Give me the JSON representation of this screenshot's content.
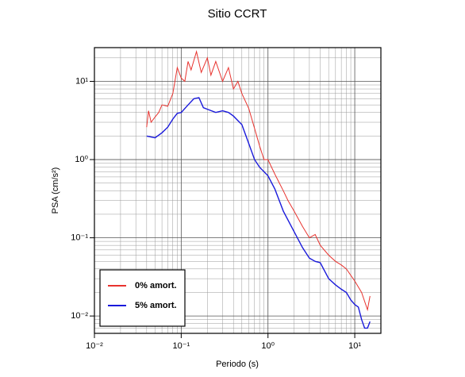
{
  "chart_data": {
    "type": "line",
    "title": "Sitio CCRT",
    "x_label": "Periodo (s)",
    "y_label": "PSA (cm/s²)",
    "log_x": true,
    "log_y": true,
    "grid": true,
    "minor_grid": true,
    "legend": "lower left",
    "xlim": [
      0.01,
      20
    ],
    "ylim": [
      0.006,
      27
    ],
    "xticks": [
      {
        "value": 0.01,
        "label": "10⁻²"
      },
      {
        "value": 0.1,
        "label": "10⁻¹"
      },
      {
        "value": 1,
        "label": "10⁰"
      },
      {
        "value": 10,
        "label": "10¹"
      }
    ],
    "yticks": [
      {
        "value": 0.01,
        "label": "10⁻²"
      },
      {
        "value": 0.1,
        "label": "10⁻¹"
      },
      {
        "value": 1,
        "label": "10⁰"
      },
      {
        "value": 10,
        "label": "10¹"
      }
    ],
    "series": [
      {
        "name": "0% amort.",
        "color": "#e8332e",
        "x": [
          0.04,
          0.042,
          0.045,
          0.05,
          0.055,
          0.06,
          0.07,
          0.08,
          0.09,
          0.1,
          0.11,
          0.12,
          0.13,
          0.15,
          0.17,
          0.2,
          0.22,
          0.25,
          0.3,
          0.35,
          0.4,
          0.45,
          0.5,
          0.6,
          0.7,
          0.8,
          0.9,
          1.0,
          1.2,
          1.5,
          1.7,
          2.0,
          2.5,
          3.0,
          3.5,
          4.0,
          5.0,
          6.0,
          7.0,
          8.0,
          10.0,
          12.0,
          14.0,
          15.0
        ],
        "values": [
          2.6,
          4.2,
          3.0,
          3.5,
          4.0,
          5.0,
          4.8,
          7.0,
          15,
          11,
          10,
          18,
          14,
          24,
          13,
          20,
          12,
          18,
          10,
          15,
          8,
          10,
          7,
          4.5,
          2.5,
          1.5,
          1.0,
          1.0,
          0.65,
          0.4,
          0.3,
          0.22,
          0.14,
          0.1,
          0.11,
          0.08,
          0.06,
          0.05,
          0.045,
          0.04,
          0.028,
          0.02,
          0.012,
          0.018
        ]
      },
      {
        "name": "5% amort.",
        "color": "#1a1adb",
        "x": [
          0.04,
          0.05,
          0.06,
          0.07,
          0.08,
          0.09,
          0.1,
          0.12,
          0.14,
          0.16,
          0.18,
          0.2,
          0.25,
          0.3,
          0.35,
          0.4,
          0.5,
          0.6,
          0.7,
          0.8,
          1.0,
          1.2,
          1.5,
          2.0,
          2.5,
          3.0,
          3.5,
          4.0,
          5.0,
          6.0,
          7.0,
          8.0,
          9.0,
          10.0,
          11.0,
          12.0,
          13.0,
          14.0,
          15.0
        ],
        "values": [
          2.0,
          1.9,
          2.2,
          2.6,
          3.3,
          3.9,
          4.0,
          5.0,
          6.0,
          6.2,
          4.6,
          4.4,
          4.0,
          4.2,
          4.0,
          3.6,
          2.8,
          1.6,
          1.0,
          0.8,
          0.62,
          0.42,
          0.22,
          0.12,
          0.075,
          0.055,
          0.05,
          0.048,
          0.03,
          0.025,
          0.022,
          0.02,
          0.016,
          0.014,
          0.013,
          0.009,
          0.007,
          0.007,
          0.0085
        ]
      }
    ]
  }
}
